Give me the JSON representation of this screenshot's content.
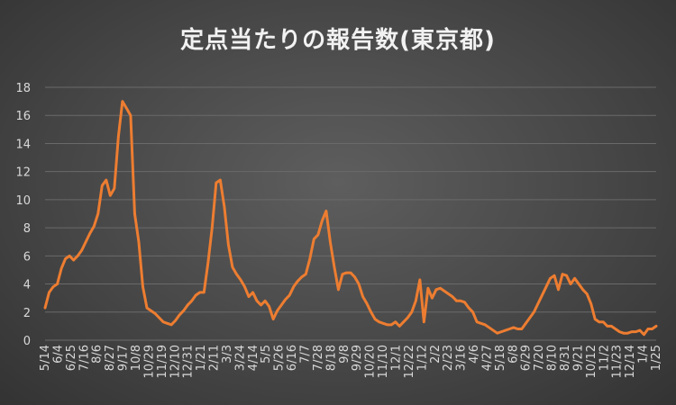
{
  "chart_data": {
    "type": "line",
    "title": "定点当たりの報告数(東京都)",
    "xlabel": "",
    "ylabel": "",
    "ylim": [
      0,
      18
    ],
    "yticks": [
      0,
      2,
      4,
      6,
      8,
      10,
      12,
      14,
      16,
      18
    ],
    "grid": true,
    "legend": "none",
    "line_color": "#ed7d31",
    "x_ticks": [
      "5/14",
      "6/4",
      "6/25",
      "7/16",
      "8/6",
      "8/27",
      "9/17",
      "10/8",
      "10/29",
      "11/19",
      "12/10",
      "12/31",
      "1/21",
      "2/11",
      "3/3",
      "3/24",
      "4/14",
      "5/5",
      "5/26",
      "6/16",
      "7/7",
      "7/28",
      "8/18",
      "9/8",
      "9/29",
      "10/20",
      "11/10",
      "12/1",
      "12/22",
      "1/12",
      "2/2",
      "2/23",
      "3/16",
      "4/6",
      "4/27",
      "5/18",
      "6/8",
      "6/29",
      "7/20",
      "8/10",
      "8/31",
      "9/21",
      "10/12",
      "11/2",
      "11/23",
      "12/14",
      "1/4",
      "1/25"
    ],
    "series": [
      {
        "values": [
          2.3,
          3.4,
          3.8,
          4.0,
          5.1,
          5.8,
          6.0,
          5.7,
          6.0,
          6.4,
          7.0,
          7.6,
          8.1,
          9.0,
          11.0,
          11.4,
          10.3,
          10.8,
          14.5,
          17.0,
          16.5,
          16.0,
          9.0,
          7.0,
          3.8,
          2.3,
          2.1,
          1.9,
          1.6,
          1.3,
          1.2,
          1.1,
          1.4,
          1.8,
          2.1,
          2.5,
          2.8,
          3.2,
          3.4,
          3.4,
          5.5,
          8.0,
          11.2,
          11.4,
          9.5,
          6.8,
          5.2,
          4.7,
          4.3,
          3.8,
          3.1,
          3.4,
          2.8,
          2.5,
          2.8,
          2.4,
          1.5,
          2.1,
          2.5,
          2.9,
          3.2,
          3.8,
          4.2,
          4.5,
          4.7,
          5.8,
          7.2,
          7.5,
          8.5,
          9.2,
          7.0,
          5.2,
          3.6,
          4.7,
          4.8,
          4.8,
          4.5,
          4.0,
          3.1,
          2.6,
          2.0,
          1.5,
          1.3,
          1.2,
          1.1,
          1.1,
          1.3,
          1.0,
          1.3,
          1.6,
          2.0,
          2.8,
          4.3,
          1.3,
          3.7,
          3.0,
          3.6,
          3.7,
          3.5,
          3.3,
          3.1,
          2.8,
          2.8,
          2.7,
          2.3,
          2.0,
          1.3,
          1.2,
          1.1,
          0.9,
          0.7,
          0.5,
          0.6,
          0.7,
          0.8,
          0.9,
          0.8,
          0.8,
          1.2,
          1.6,
          2.0,
          2.6,
          3.2,
          3.8,
          4.4,
          4.6,
          3.6,
          4.7,
          4.6,
          4.0,
          4.4,
          4.0,
          3.6,
          3.3,
          2.6,
          1.5,
          1.3,
          1.3,
          1.0,
          1.0,
          0.8,
          0.6,
          0.5,
          0.5,
          0.6,
          0.6,
          0.7,
          0.4,
          0.8,
          0.8,
          1.0
        ]
      }
    ]
  }
}
